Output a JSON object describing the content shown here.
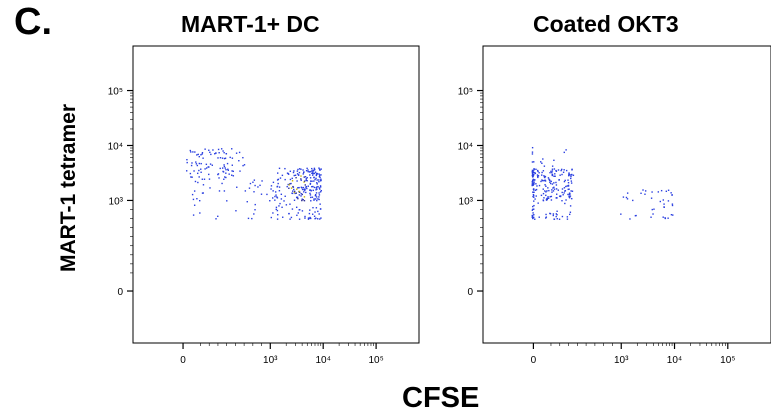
{
  "figure": {
    "panel_label": "C.",
    "y_axis_title": "MART-1 tetramer",
    "x_axis_title": "CFSE"
  },
  "colors": {
    "points": "#2a3fe0",
    "dense_core": "#c8b400",
    "axis": "#000000"
  },
  "chart_data": [
    {
      "type": "scatter",
      "title": "MART-1+ DC",
      "xlabel": "CFSE",
      "ylabel": "MART-1 tetramer",
      "x_scale": "biexponential",
      "y_scale": "biexponential",
      "x_ticks": [
        {
          "value": "0",
          "label": "0"
        },
        {
          "value": "1e3",
          "label": "10³"
        },
        {
          "value": "1e4",
          "label": "10⁴"
        },
        {
          "value": "1e5",
          "label": "10⁵"
        }
      ],
      "y_ticks": [
        {
          "value": "0",
          "label": "0"
        },
        {
          "value": "1e3",
          "label": "10³"
        },
        {
          "value": "1e4",
          "label": "10⁴"
        },
        {
          "value": "1e5",
          "label": "10⁵"
        }
      ],
      "grid": false,
      "clusters": [
        {
          "x_range": [
            30,
            700
          ],
          "y_range": [
            2500,
            9000
          ],
          "n": 95
        },
        {
          "x_range": [
            1200,
            9000
          ],
          "y_range": [
            800,
            4000
          ],
          "n": 210
        },
        {
          "x_range": [
            2000,
            4500
          ],
          "y_range": [
            1000,
            3000
          ],
          "n": 25,
          "dense": true
        },
        {
          "x_range": [
            100,
            1500
          ],
          "y_range": [
            800,
            2500
          ],
          "n": 60
        }
      ]
    },
    {
      "type": "scatter",
      "title": "Coated OKT3",
      "xlabel": "CFSE",
      "ylabel": "MART-1 tetramer",
      "x_scale": "biexponential",
      "y_scale": "biexponential",
      "x_ticks": [
        {
          "value": "0",
          "label": "0"
        },
        {
          "value": "1e3",
          "label": "10³"
        },
        {
          "value": "1e4",
          "label": "10⁴"
        },
        {
          "value": "1e5",
          "label": "10⁵"
        }
      ],
      "y_ticks": [
        {
          "value": "0",
          "label": "0"
        },
        {
          "value": "1e3",
          "label": "10³"
        },
        {
          "value": "1e4",
          "label": "10⁴"
        },
        {
          "value": "1e5",
          "label": "10⁵"
        }
      ],
      "grid": false,
      "clusters": [
        {
          "x_range": [
            0,
            450
          ],
          "y_range": [
            800,
            4000
          ],
          "n": 230
        },
        {
          "x_range": [
            0,
            400
          ],
          "y_range": [
            3000,
            10000
          ],
          "n": 22
        },
        {
          "x_range": [
            450,
            9000
          ],
          "y_range": [
            800,
            1600
          ],
          "n": 40
        }
      ]
    }
  ]
}
